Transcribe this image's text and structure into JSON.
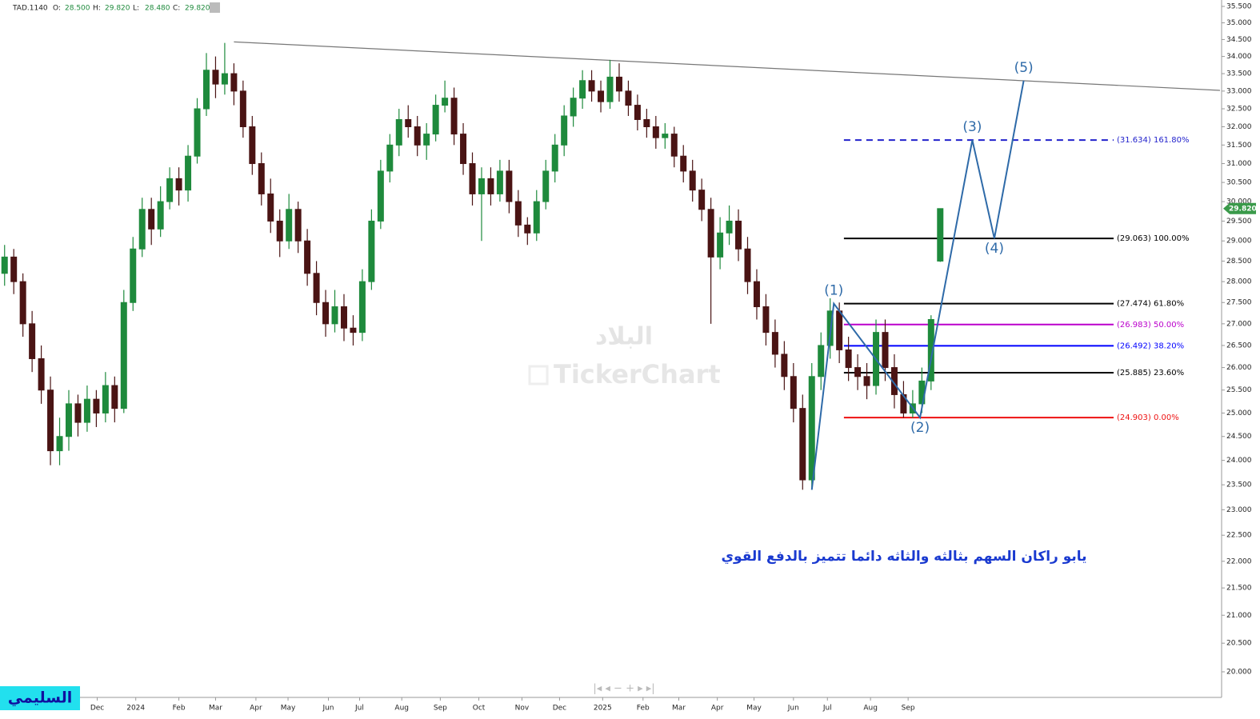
{
  "chart_data": {
    "type": "candlestick",
    "header": {
      "symbol": "TAD.1140",
      "fields": [
        {
          "name": "O:",
          "value": "28.500"
        },
        {
          "name": "H:",
          "value": "29.820"
        },
        {
          "name": "L:",
          "value": "28.480"
        },
        {
          "name": "C:",
          "value": "29.820"
        }
      ]
    },
    "log_scale": true,
    "ylim": [
      20,
      35.5
    ],
    "xlim": [
      -0.5,
      132.5
    ],
    "up_color": "#1e8a3c",
    "down_color": "#4a1414",
    "ohlc": [
      [
        28.2,
        28.9,
        27.9,
        28.6
      ],
      [
        28.6,
        28.8,
        27.7,
        28.0
      ],
      [
        28.0,
        28.2,
        26.7,
        27.0
      ],
      [
        27.0,
        27.3,
        25.9,
        26.2
      ],
      [
        26.2,
        26.5,
        25.2,
        25.5
      ],
      [
        25.5,
        25.8,
        23.9,
        24.2
      ],
      [
        24.2,
        24.9,
        23.9,
        24.5
      ],
      [
        24.5,
        25.5,
        24.2,
        25.2
      ],
      [
        25.2,
        25.4,
        24.5,
        24.8
      ],
      [
        24.8,
        25.6,
        24.6,
        25.3
      ],
      [
        25.3,
        25.5,
        24.7,
        25.0
      ],
      [
        25.0,
        25.9,
        24.8,
        25.6
      ],
      [
        25.6,
        25.8,
        24.8,
        25.1
      ],
      [
        25.1,
        27.8,
        25.0,
        27.5
      ],
      [
        27.5,
        29.1,
        27.3,
        28.8
      ],
      [
        28.8,
        30.1,
        28.6,
        29.8
      ],
      [
        29.8,
        30.1,
        28.9,
        29.3
      ],
      [
        29.3,
        30.4,
        29.1,
        30.0
      ],
      [
        30.0,
        30.9,
        29.8,
        30.6
      ],
      [
        30.6,
        30.9,
        29.9,
        30.3
      ],
      [
        30.3,
        31.5,
        30.0,
        31.2
      ],
      [
        31.2,
        32.8,
        31.0,
        32.5
      ],
      [
        32.5,
        34.1,
        32.3,
        33.6
      ],
      [
        33.6,
        34.0,
        32.8,
        33.2
      ],
      [
        33.2,
        34.4,
        32.9,
        33.5
      ],
      [
        33.5,
        33.8,
        32.6,
        33.0
      ],
      [
        33.0,
        33.3,
        31.7,
        32.0
      ],
      [
        32.0,
        32.3,
        30.7,
        31.0
      ],
      [
        31.0,
        31.3,
        29.9,
        30.2
      ],
      [
        30.2,
        30.6,
        29.2,
        29.5
      ],
      [
        29.5,
        29.8,
        28.6,
        29.0
      ],
      [
        29.0,
        30.2,
        28.8,
        29.8
      ],
      [
        29.8,
        30.0,
        28.7,
        29.0
      ],
      [
        29.0,
        29.3,
        27.9,
        28.2
      ],
      [
        28.2,
        28.5,
        27.2,
        27.5
      ],
      [
        27.5,
        27.8,
        26.7,
        27.0
      ],
      [
        27.0,
        27.8,
        26.8,
        27.4
      ],
      [
        27.4,
        27.7,
        26.6,
        26.9
      ],
      [
        26.9,
        27.2,
        26.5,
        26.8
      ],
      [
        26.8,
        28.3,
        26.6,
        28.0
      ],
      [
        28.0,
        29.8,
        27.8,
        29.5
      ],
      [
        29.5,
        31.1,
        29.3,
        30.8
      ],
      [
        30.8,
        31.8,
        30.5,
        31.5
      ],
      [
        31.5,
        32.5,
        31.2,
        32.2
      ],
      [
        32.2,
        32.6,
        31.7,
        32.0
      ],
      [
        32.0,
        32.3,
        31.2,
        31.5
      ],
      [
        31.5,
        32.1,
        31.1,
        31.8
      ],
      [
        31.8,
        32.9,
        31.6,
        32.6
      ],
      [
        32.6,
        33.3,
        32.4,
        32.8
      ],
      [
        32.8,
        33.1,
        31.5,
        31.8
      ],
      [
        31.8,
        32.1,
        30.7,
        31.0
      ],
      [
        31.0,
        31.3,
        29.9,
        30.2
      ],
      [
        30.2,
        30.9,
        29.0,
        30.6
      ],
      [
        30.6,
        30.9,
        29.9,
        30.2
      ],
      [
        30.2,
        31.1,
        30.0,
        30.8
      ],
      [
        30.8,
        31.1,
        29.7,
        30.0
      ],
      [
        30.0,
        30.3,
        29.1,
        29.4
      ],
      [
        29.4,
        29.6,
        28.9,
        29.2
      ],
      [
        29.2,
        30.3,
        29.0,
        30.0
      ],
      [
        30.0,
        31.1,
        29.8,
        30.8
      ],
      [
        30.8,
        31.8,
        30.5,
        31.5
      ],
      [
        31.5,
        32.6,
        31.2,
        32.3
      ],
      [
        32.3,
        33.1,
        32.0,
        32.8
      ],
      [
        32.8,
        33.6,
        32.5,
        33.3
      ],
      [
        33.3,
        33.6,
        32.7,
        33.0
      ],
      [
        33.0,
        33.3,
        32.4,
        32.7
      ],
      [
        32.7,
        33.9,
        32.5,
        33.4
      ],
      [
        33.4,
        33.8,
        32.7,
        33.0
      ],
      [
        33.0,
        33.3,
        32.3,
        32.6
      ],
      [
        32.6,
        32.9,
        31.9,
        32.2
      ],
      [
        32.2,
        32.5,
        31.7,
        32.0
      ],
      [
        32.0,
        32.3,
        31.4,
        31.7
      ],
      [
        31.7,
        32.1,
        31.4,
        31.8
      ],
      [
        31.8,
        32.0,
        30.9,
        31.2
      ],
      [
        31.2,
        31.5,
        30.5,
        30.8
      ],
      [
        30.8,
        31.1,
        30.0,
        30.3
      ],
      [
        30.3,
        30.6,
        29.5,
        29.8
      ],
      [
        29.8,
        30.1,
        27.0,
        28.6
      ],
      [
        28.6,
        29.6,
        28.3,
        29.2
      ],
      [
        29.2,
        29.9,
        28.9,
        29.5
      ],
      [
        29.5,
        29.8,
        28.5,
        28.8
      ],
      [
        28.8,
        29.1,
        27.7,
        28.0
      ],
      [
        28.0,
        28.3,
        27.1,
        27.4
      ],
      [
        27.4,
        27.7,
        26.5,
        26.8
      ],
      [
        26.8,
        27.1,
        26.0,
        26.3
      ],
      [
        26.3,
        26.6,
        25.5,
        25.8
      ],
      [
        25.8,
        26.1,
        24.8,
        25.1
      ],
      [
        25.1,
        25.4,
        23.4,
        23.6
      ],
      [
        23.6,
        26.1,
        23.4,
        25.8
      ],
      [
        25.8,
        26.8,
        25.5,
        26.5
      ],
      [
        26.5,
        27.6,
        26.2,
        27.3
      ],
      [
        27.3,
        27.5,
        26.1,
        26.4
      ],
      [
        26.4,
        26.7,
        25.7,
        26.0
      ],
      [
        26.0,
        26.3,
        25.5,
        25.8
      ],
      [
        25.8,
        26.1,
        25.3,
        25.6
      ],
      [
        25.6,
        27.1,
        25.4,
        26.8
      ],
      [
        26.8,
        27.1,
        25.7,
        26.0
      ],
      [
        26.0,
        26.3,
        25.1,
        25.4
      ],
      [
        25.4,
        25.7,
        24.9,
        25.0
      ],
      [
        25.0,
        25.5,
        24.9,
        25.2
      ],
      [
        25.2,
        26.0,
        25.0,
        25.7
      ],
      [
        25.7,
        27.2,
        25.5,
        27.1
      ],
      [
        28.5,
        29.82,
        28.48,
        29.82
      ]
    ],
    "xticks": [
      {
        "value": 10.1,
        "label": "Dec"
      },
      {
        "value": 14.3,
        "label": "2024"
      },
      {
        "value": 19.0,
        "label": "Feb"
      },
      {
        "value": 23.0,
        "label": "Mar"
      },
      {
        "value": 27.4,
        "label": "Apr"
      },
      {
        "value": 30.9,
        "label": "May"
      },
      {
        "value": 35.3,
        "label": "Jun"
      },
      {
        "value": 38.7,
        "label": "Jul"
      },
      {
        "value": 43.3,
        "label": "Aug"
      },
      {
        "value": 47.5,
        "label": "Sep"
      },
      {
        "value": 51.7,
        "label": "Oct"
      },
      {
        "value": 56.4,
        "label": "Nov"
      },
      {
        "value": 60.5,
        "label": "Dec"
      },
      {
        "value": 65.2,
        "label": "2025"
      },
      {
        "value": 69.6,
        "label": "Feb"
      },
      {
        "value": 73.5,
        "label": "Mar"
      },
      {
        "value": 77.7,
        "label": "Apr"
      },
      {
        "value": 81.7,
        "label": "May"
      },
      {
        "value": 86.0,
        "label": "Jun"
      },
      {
        "value": 89.7,
        "label": "Jul"
      },
      {
        "value": 94.4,
        "label": "Aug"
      },
      {
        "value": 98.5,
        "label": "Sep"
      }
    ],
    "yticks": [
      {
        "value": 35.5,
        "label": "35.500"
      },
      {
        "value": 35,
        "label": "35.000"
      },
      {
        "value": 34.5,
        "label": "34.500"
      },
      {
        "value": 34,
        "label": "34.000"
      },
      {
        "value": 33.5,
        "label": "33.500"
      },
      {
        "value": 33,
        "label": "33.000"
      },
      {
        "value": 32.5,
        "label": "32.500"
      },
      {
        "value": 32,
        "label": "32.000"
      },
      {
        "value": 31.5,
        "label": "31.500"
      },
      {
        "value": 31,
        "label": "31.000"
      },
      {
        "value": 30.5,
        "label": "30.500"
      },
      {
        "value": 30,
        "label": "30.000"
      },
      {
        "value": 29.5,
        "label": "29.500"
      },
      {
        "value": 29,
        "label": "29.000"
      },
      {
        "value": 28.5,
        "label": "28.500"
      },
      {
        "value": 28,
        "label": "28.000"
      },
      {
        "value": 27.5,
        "label": "27.500"
      },
      {
        "value": 27,
        "label": "27.000"
      },
      {
        "value": 26.5,
        "label": "26.500"
      },
      {
        "value": 26,
        "label": "26.000"
      },
      {
        "value": 25.5,
        "label": "25.500"
      },
      {
        "value": 25,
        "label": "25.000"
      },
      {
        "value": 24.5,
        "label": "24.500"
      },
      {
        "value": 24,
        "label": "24.000"
      },
      {
        "value": 23.5,
        "label": "23.500"
      },
      {
        "value": 23,
        "label": "23.000"
      },
      {
        "value": 22.5,
        "label": "22.500"
      },
      {
        "value": 22,
        "label": "22.000"
      },
      {
        "value": 21.5,
        "label": "21.500"
      },
      {
        "value": 21,
        "label": "21.000"
      },
      {
        "value": 20.5,
        "label": "20.500"
      },
      {
        "value": 20,
        "label": "20.000"
      }
    ],
    "last_price": {
      "value": 29.82,
      "label": "29.820",
      "color": "#3a9a4a"
    },
    "trendline": {
      "x": [
        25,
        132.5
      ],
      "values": [
        34.43,
        33.02
      ],
      "color": "#777777"
    },
    "fib_x": [
      91.5,
      120.9
    ],
    "fib_levels": [
      {
        "value": 31.634,
        "label": "(31.634) 161.80%",
        "color": "#2222cc",
        "dashed": true
      },
      {
        "value": 29.063,
        "label": "(29.063) 100.00%",
        "color": "#000000",
        "dashed": false
      },
      {
        "value": 27.474,
        "label": "(27.474) 61.80%",
        "color": "#000000",
        "dashed": false
      },
      {
        "value": 26.983,
        "label": "(26.983) 50.00%",
        "color": "#bb00cc",
        "dashed": false
      },
      {
        "value": 26.492,
        "label": "(26.492) 38.20%",
        "color": "#0000ff",
        "dashed": false
      },
      {
        "value": 25.885,
        "label": "(25.885) 23.60%",
        "color": "#000000",
        "dashed": false
      },
      {
        "value": 24.903,
        "label": "(24.903) 0.00%",
        "color": "#ee1111",
        "dashed": false
      }
    ],
    "waves": {
      "color": "#2e6aa8",
      "x": [
        88.0,
        90.4,
        99.8,
        105.5,
        107.9,
        111.1
      ],
      "values": [
        23.4,
        27.474,
        24.903,
        31.634,
        29.063,
        33.3
      ],
      "labels": [
        null,
        "(1)",
        "(2)",
        "(3)",
        "(4)",
        "(5)"
      ]
    },
    "annotation": "يابو راكان السهم بثالثه والثاثه دائما تتميز بالدفع القوي",
    "watermark": [
      "البلاد",
      "TickerChart"
    ],
    "author": "السليمي"
  }
}
